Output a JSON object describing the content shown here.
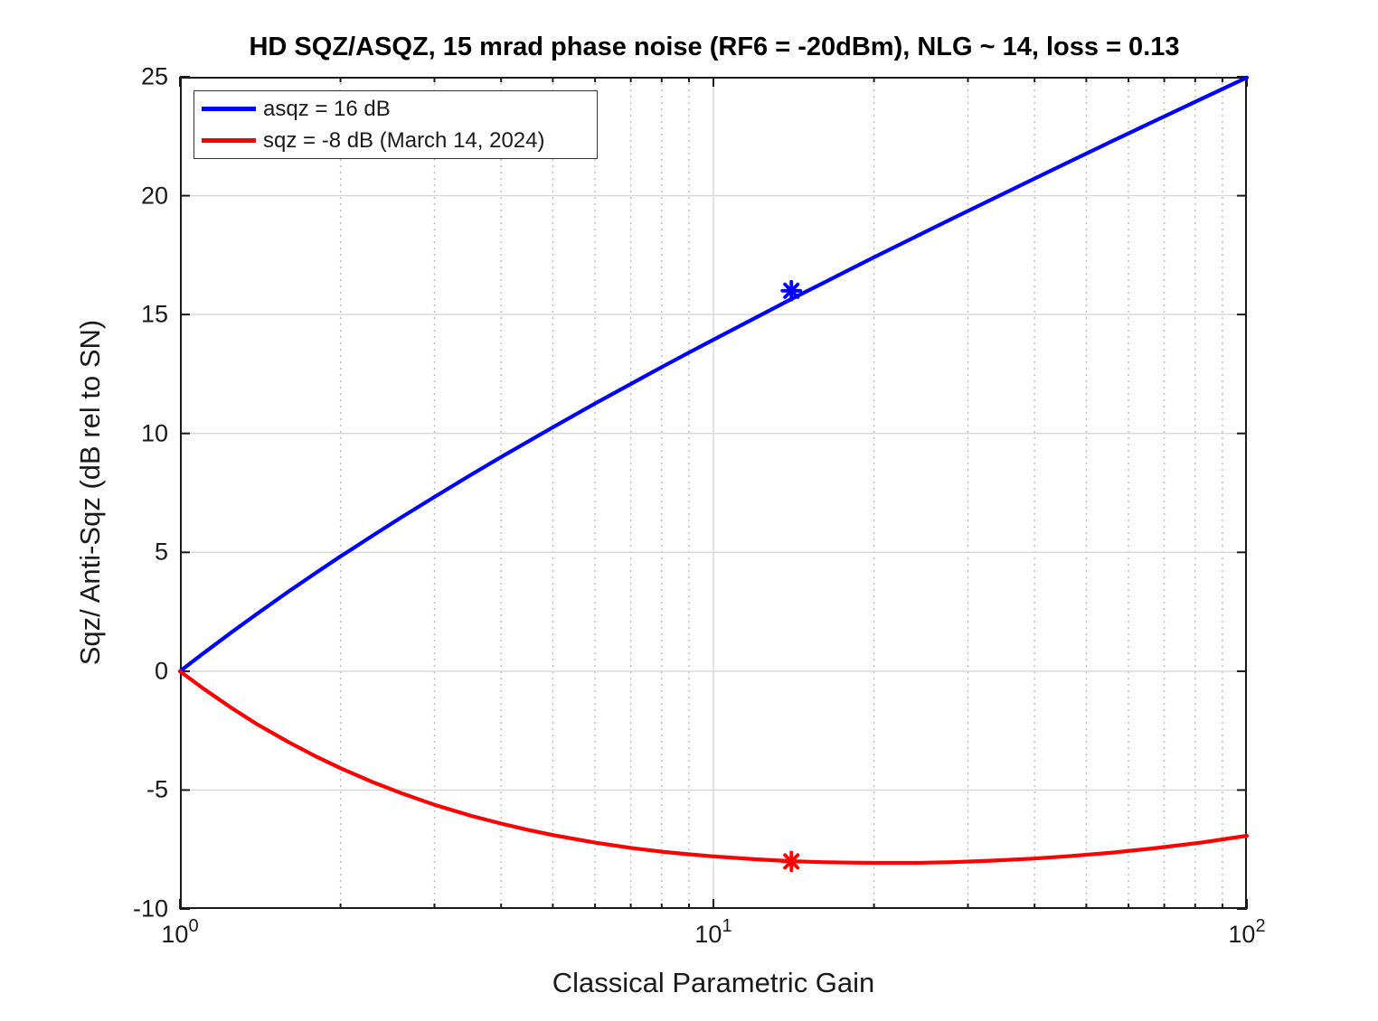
{
  "chart_data": {
    "type": "line",
    "title": "HD SQZ/ASQZ, 15 mrad phase noise (RF6 = -20dBm), NLG ~ 14, loss = 0.13",
    "xlabel": "Classical Parametric Gain",
    "ylabel": "Sqz/ Anti-Sqz (dB rel to SN)",
    "x_scale": "log",
    "xlim": [
      1,
      100
    ],
    "ylim": [
      -10,
      25
    ],
    "grid": true,
    "legend_position": "top-left",
    "x": [
      1,
      1.1,
      1.25,
      1.4,
      1.6,
      1.8,
      2,
      2.3,
      2.6,
      3,
      3.5,
      4,
      4.5,
      5,
      6,
      7,
      8,
      9,
      10,
      12,
      14,
      16,
      18,
      20,
      24,
      28,
      33,
      40,
      47,
      56,
      68,
      82,
      100
    ],
    "series": [
      {
        "name": "asqz = 16 dB",
        "color": "#0000ff",
        "values": [
          0,
          0.71,
          1.64,
          2.44,
          3.36,
          4.14,
          4.83,
          5.71,
          6.47,
          7.33,
          8.24,
          9.01,
          9.67,
          10.26,
          11.26,
          12.08,
          12.79,
          13.4,
          13.94,
          14.87,
          15.65,
          16.31,
          16.89,
          17.41,
          18.29,
          19.03,
          19.81,
          20.72,
          21.48,
          22.3,
          23.2,
          24.06,
          24.97
        ]
      },
      {
        "name": "sqz = -8 dB (March 14, 2024)",
        "color": "#ff0000",
        "values": [
          0,
          -0.69,
          -1.55,
          -2.25,
          -2.99,
          -3.59,
          -4.08,
          -4.67,
          -5.13,
          -5.62,
          -6.07,
          -6.41,
          -6.68,
          -6.89,
          -7.21,
          -7.43,
          -7.59,
          -7.7,
          -7.79,
          -7.91,
          -7.99,
          -8.03,
          -8.05,
          -8.06,
          -8.06,
          -8.03,
          -7.97,
          -7.88,
          -7.77,
          -7.63,
          -7.43,
          -7.21,
          -6.92
        ]
      }
    ],
    "markers": [
      {
        "series": "asqz = 16 dB",
        "shape": "asterisk",
        "color": "#0000ff",
        "x": 14,
        "y": 16
      },
      {
        "series": "sqz = -8 dB (March 14, 2024)",
        "shape": "asterisk",
        "color": "#ff0000",
        "x": 14,
        "y": -8
      }
    ],
    "x_major_ticks": [
      {
        "value": 1,
        "base": "10",
        "exp": "0"
      },
      {
        "value": 10,
        "base": "10",
        "exp": "1"
      },
      {
        "value": 100,
        "base": "10",
        "exp": "2"
      }
    ],
    "x_minor_ticks": [
      2,
      3,
      4,
      5,
      6,
      7,
      8,
      9,
      20,
      30,
      40,
      50,
      60,
      70,
      80,
      90
    ],
    "y_ticks": [
      25,
      20,
      15,
      10,
      5,
      0,
      -5,
      -10
    ]
  }
}
